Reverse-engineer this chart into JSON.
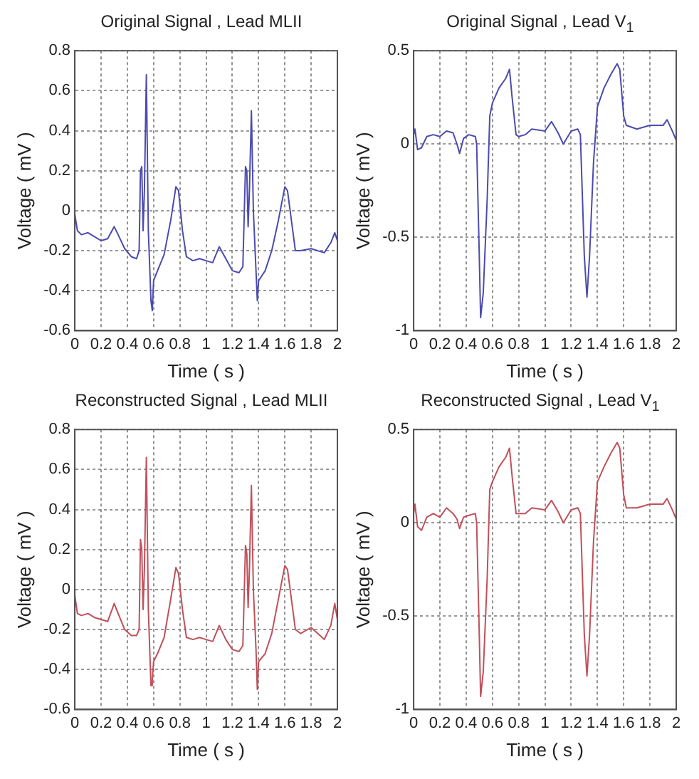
{
  "chart_data": [
    {
      "type": "line",
      "title": "Original  Signal , Lead MLII",
      "xlabel": "Time ( s )",
      "ylabel": "Voltage ( mV )",
      "color": "#4b4bb0",
      "x": [
        0,
        0.02,
        0.05,
        0.1,
        0.15,
        0.2,
        0.25,
        0.3,
        0.33,
        0.38,
        0.43,
        0.47,
        0.49,
        0.5,
        0.51,
        0.52,
        0.53,
        0.545,
        0.56,
        0.58,
        0.59,
        0.6,
        0.63,
        0.68,
        0.73,
        0.77,
        0.79,
        0.82,
        0.85,
        0.9,
        0.95,
        1.0,
        1.05,
        1.1,
        1.15,
        1.2,
        1.25,
        1.28,
        1.3,
        1.31,
        1.32,
        1.33,
        1.345,
        1.36,
        1.38,
        1.39,
        1.4,
        1.45,
        1.5,
        1.55,
        1.6,
        1.62,
        1.65,
        1.68,
        1.72,
        1.8,
        1.9,
        1.95,
        1.98,
        2.0
      ],
      "values": [
        -0.02,
        -0.1,
        -0.12,
        -0.11,
        -0.13,
        -0.15,
        -0.14,
        -0.08,
        -0.12,
        -0.19,
        -0.23,
        -0.24,
        -0.2,
        0.2,
        0.22,
        -0.1,
        0.1,
        0.68,
        -0.1,
        -0.45,
        -0.5,
        -0.35,
        -0.3,
        -0.22,
        -0.05,
        0.12,
        0.1,
        -0.1,
        -0.23,
        -0.25,
        -0.24,
        -0.25,
        -0.26,
        -0.18,
        -0.24,
        -0.3,
        -0.31,
        -0.28,
        0.22,
        0.2,
        -0.08,
        0.1,
        0.5,
        0.0,
        -0.3,
        -0.45,
        -0.35,
        -0.3,
        -0.2,
        -0.05,
        0.12,
        0.1,
        -0.05,
        -0.2,
        -0.2,
        -0.19,
        -0.21,
        -0.16,
        -0.11,
        -0.15
      ],
      "xlim": [
        0,
        2
      ],
      "xticks": [
        0,
        0.2,
        0.4,
        0.6,
        0.8,
        1,
        1.2,
        1.4,
        1.6,
        1.8,
        2
      ],
      "ylim": [
        -0.6,
        0.8
      ],
      "yticks": [
        -0.6,
        -0.4,
        -0.2,
        0,
        0.2,
        0.4,
        0.6,
        0.8
      ],
      "grid": true
    },
    {
      "type": "line",
      "title": "Original  Signal , Lead V$_{1}$",
      "xlabel": "Time ( s )",
      "ylabel": "Voltage ( mV )",
      "color": "#4b4bb0",
      "x": [
        0,
        0.01,
        0.03,
        0.06,
        0.1,
        0.15,
        0.2,
        0.25,
        0.3,
        0.33,
        0.35,
        0.38,
        0.42,
        0.47,
        0.48,
        0.5,
        0.51,
        0.53,
        0.56,
        0.58,
        0.6,
        0.65,
        0.7,
        0.73,
        0.75,
        0.78,
        0.8,
        0.85,
        0.9,
        1.0,
        1.05,
        1.1,
        1.14,
        1.2,
        1.25,
        1.27,
        1.3,
        1.32,
        1.34,
        1.37,
        1.4,
        1.45,
        1.5,
        1.55,
        1.57,
        1.6,
        1.62,
        1.7,
        1.8,
        1.9,
        1.93,
        1.97,
        2.0
      ],
      "values": [
        0.05,
        0.08,
        -0.03,
        -0.02,
        0.04,
        0.05,
        0.04,
        0.07,
        0.06,
        0.0,
        -0.05,
        0.03,
        0.05,
        0.04,
        0.0,
        -0.6,
        -0.93,
        -0.8,
        -0.3,
        0.15,
        0.22,
        0.3,
        0.35,
        0.4,
        0.25,
        0.05,
        0.04,
        0.05,
        0.08,
        0.07,
        0.12,
        0.06,
        0.0,
        0.07,
        0.08,
        0.05,
        -0.6,
        -0.82,
        -0.6,
        -0.1,
        0.2,
        0.3,
        0.37,
        0.43,
        0.4,
        0.15,
        0.1,
        0.08,
        0.1,
        0.1,
        0.13,
        0.07,
        0.02
      ],
      "xlim": [
        0,
        2
      ],
      "xticks": [
        0,
        0.2,
        0.4,
        0.6,
        0.8,
        1,
        1.2,
        1.4,
        1.6,
        1.8,
        2
      ],
      "ylim": [
        -1,
        0.5
      ],
      "yticks": [
        -1,
        -0.5,
        0,
        0.5
      ],
      "grid": true
    },
    {
      "type": "line",
      "title": "Reconstructed  Signal , Lead MLII",
      "xlabel": "Time ( s )",
      "ylabel": "Voltage ( mV )",
      "color": "#c0505a",
      "x": [
        0,
        0.02,
        0.05,
        0.1,
        0.15,
        0.2,
        0.25,
        0.3,
        0.33,
        0.38,
        0.43,
        0.47,
        0.49,
        0.5,
        0.51,
        0.52,
        0.53,
        0.545,
        0.56,
        0.58,
        0.59,
        0.6,
        0.63,
        0.68,
        0.73,
        0.77,
        0.79,
        0.82,
        0.85,
        0.9,
        0.95,
        1.0,
        1.05,
        1.1,
        1.15,
        1.2,
        1.25,
        1.28,
        1.3,
        1.31,
        1.32,
        1.33,
        1.345,
        1.36,
        1.38,
        1.39,
        1.4,
        1.45,
        1.5,
        1.55,
        1.6,
        1.62,
        1.65,
        1.68,
        1.72,
        1.8,
        1.9,
        1.95,
        1.98,
        2.0
      ],
      "values": [
        -0.03,
        -0.12,
        -0.13,
        -0.12,
        -0.14,
        -0.15,
        -0.16,
        -0.07,
        -0.12,
        -0.2,
        -0.23,
        -0.23,
        -0.2,
        0.25,
        0.2,
        -0.1,
        0.1,
        0.66,
        -0.1,
        -0.48,
        -0.45,
        -0.36,
        -0.32,
        -0.24,
        -0.05,
        0.11,
        0.08,
        -0.1,
        -0.24,
        -0.25,
        -0.24,
        -0.25,
        -0.26,
        -0.18,
        -0.25,
        -0.3,
        -0.31,
        -0.28,
        0.22,
        0.18,
        -0.09,
        0.1,
        0.52,
        0.0,
        -0.3,
        -0.5,
        -0.36,
        -0.32,
        -0.22,
        -0.05,
        0.12,
        0.1,
        -0.05,
        -0.2,
        -0.22,
        -0.19,
        -0.25,
        -0.18,
        -0.07,
        -0.15
      ],
      "xlim": [
        0,
        2
      ],
      "xticks": [
        0,
        0.2,
        0.4,
        0.6,
        0.8,
        1,
        1.2,
        1.4,
        1.6,
        1.8,
        2
      ],
      "ylim": [
        -0.6,
        0.8
      ],
      "yticks": [
        -0.6,
        -0.4,
        -0.2,
        0,
        0.2,
        0.4,
        0.6,
        0.8
      ],
      "grid": true
    },
    {
      "type": "line",
      "title": "Reconstructed  Signal , Lead V$_{1}$",
      "xlabel": "Time ( s )",
      "ylabel": "Voltage ( mV )",
      "color": "#c0505a",
      "x": [
        0,
        0.01,
        0.03,
        0.06,
        0.1,
        0.15,
        0.2,
        0.25,
        0.3,
        0.33,
        0.35,
        0.38,
        0.42,
        0.47,
        0.48,
        0.5,
        0.51,
        0.53,
        0.56,
        0.58,
        0.6,
        0.65,
        0.7,
        0.73,
        0.75,
        0.78,
        0.8,
        0.85,
        0.9,
        1.0,
        1.05,
        1.1,
        1.14,
        1.2,
        1.25,
        1.27,
        1.3,
        1.32,
        1.34,
        1.37,
        1.4,
        1.45,
        1.5,
        1.55,
        1.57,
        1.6,
        1.62,
        1.7,
        1.8,
        1.9,
        1.93,
        1.97,
        2.0
      ],
      "values": [
        0.05,
        0.1,
        -0.02,
        -0.04,
        0.03,
        0.05,
        0.03,
        0.08,
        0.05,
        0.02,
        -0.03,
        0.03,
        0.04,
        0.05,
        0.0,
        -0.6,
        -0.93,
        -0.8,
        -0.3,
        0.18,
        0.22,
        0.3,
        0.35,
        0.4,
        0.25,
        0.05,
        0.05,
        0.05,
        0.08,
        0.07,
        0.12,
        0.06,
        0.0,
        0.07,
        0.08,
        0.05,
        -0.6,
        -0.82,
        -0.6,
        -0.1,
        0.22,
        0.3,
        0.37,
        0.43,
        0.4,
        0.15,
        0.08,
        0.08,
        0.1,
        0.1,
        0.13,
        0.07,
        0.02
      ],
      "xlim": [
        0,
        2
      ],
      "xticks": [
        0,
        0.2,
        0.4,
        0.6,
        0.8,
        1,
        1.2,
        1.4,
        1.6,
        1.8,
        2
      ],
      "ylim": [
        -1,
        0.5
      ],
      "yticks": [
        -1,
        -0.5,
        0,
        0.5
      ],
      "grid": true
    }
  ]
}
